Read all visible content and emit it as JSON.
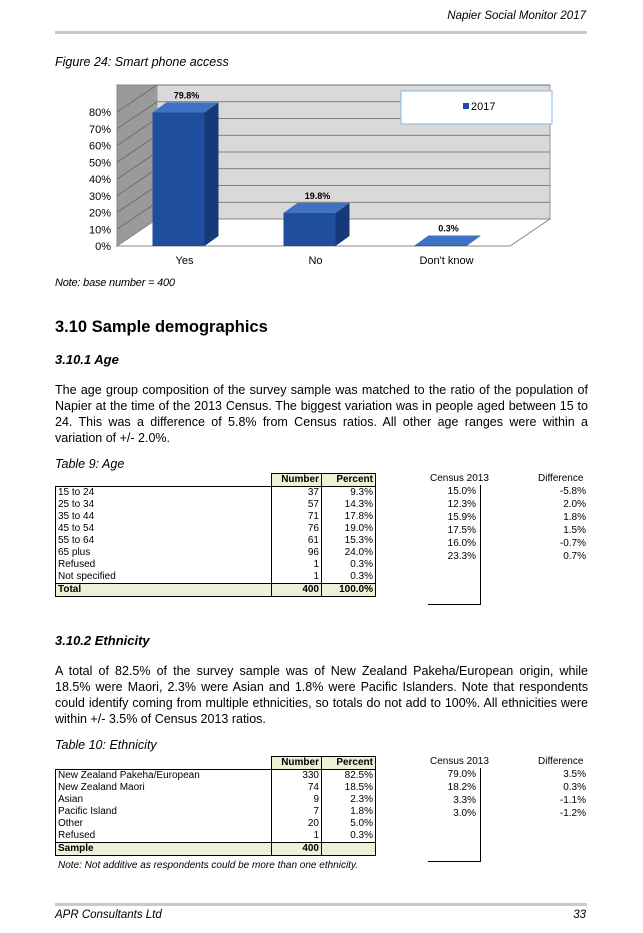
{
  "header": {
    "title": "Napier Social Monitor 2017"
  },
  "figure": {
    "caption": "Figure 24:  Smart phone access",
    "note": "Note: base number = 400"
  },
  "chart_data": {
    "type": "bar",
    "categories": [
      "Yes",
      "No",
      "Don't know"
    ],
    "series": [
      {
        "name": "2017",
        "values": [
          79.8,
          19.8,
          0.3
        ]
      }
    ],
    "data_labels": [
      "79.8%",
      "19.8%",
      "0.3%"
    ],
    "y_ticks": [
      "0%",
      "10%",
      "20%",
      "30%",
      "40%",
      "50%",
      "60%",
      "70%",
      "80%"
    ],
    "ylim": [
      0,
      80
    ],
    "grid": true,
    "legend": "top-right",
    "color": "#1f4e9e"
  },
  "section": {
    "title": "3.10  Sample demographics",
    "age_heading": "3.10.1   Age",
    "age_text": "The age group composition of the survey sample was matched to the ratio of the population of Napier at the time of the 2013 Census.  The biggest variation was in people aged between 15 to 24.  This was a difference of 5.8% from Census ratios.  All other age ranges were within a variation of +/- 2.0%.",
    "eth_heading": "3.10.2   Ethnicity",
    "eth_text": "A total of 82.5% of the survey sample was of New Zealand Pakeha/European origin, while 18.5% were Maori, 2.3% were Asian and 1.8% were Pacific Islanders.  Note that respondents could identify coming from multiple ethnicities, so totals do not add to 100%. All ethnicities were within +/- 3.5% of Census 2013 ratios."
  },
  "age_table": {
    "caption": "Table 9:  Age",
    "headers": [
      "Number",
      "Percent"
    ],
    "census_header": "Census 2013",
    "diff_header": "Difference",
    "rows": [
      {
        "label": "15 to 24",
        "number": "37",
        "percent": "9.3%",
        "census": "15.0%",
        "diff": "-5.8%"
      },
      {
        "label": "25 to 34",
        "number": "57",
        "percent": "14.3%",
        "census": "12.3%",
        "diff": "2.0%"
      },
      {
        "label": "35 to 44",
        "number": "71",
        "percent": "17.8%",
        "census": "15.9%",
        "diff": "1.8%"
      },
      {
        "label": "45 to 54",
        "number": "76",
        "percent": "19.0%",
        "census": "17.5%",
        "diff": "1.5%"
      },
      {
        "label": "55 to 64",
        "number": "61",
        "percent": "15.3%",
        "census": "16.0%",
        "diff": "-0.7%"
      },
      {
        "label": "65 plus",
        "number": "96",
        "percent": "24.0%",
        "census": "23.3%",
        "diff": "0.7%"
      },
      {
        "label": "Refused",
        "number": "1",
        "percent": "0.3%",
        "census": "",
        "diff": ""
      },
      {
        "label": "Not specified",
        "number": "1",
        "percent": "0.3%",
        "census": "",
        "diff": ""
      }
    ],
    "total": {
      "label": "Total",
      "number": "400",
      "percent": "100.0%"
    }
  },
  "eth_table": {
    "caption": "Table 10:  Ethnicity",
    "headers": [
      "Number",
      "Percent"
    ],
    "census_header": "Census 2013",
    "diff_header": "Difference",
    "rows": [
      {
        "label": "New Zealand Pakeha/European",
        "number": "330",
        "percent": "82.5%",
        "census": "79.0%",
        "diff": "3.5%"
      },
      {
        "label": "New Zealand Maori",
        "number": "74",
        "percent": "18.5%",
        "census": "18.2%",
        "diff": "0.3%"
      },
      {
        "label": "Asian",
        "number": "9",
        "percent": "2.3%",
        "census": "3.3%",
        "diff": "-1.1%"
      },
      {
        "label": "Pacific Island",
        "number": "7",
        "percent": "1.8%",
        "census": "3.0%",
        "diff": "-1.2%"
      },
      {
        "label": "Other",
        "number": "20",
        "percent": "5.0%",
        "census": "",
        "diff": ""
      },
      {
        "label": "Refused",
        "number": "1",
        "percent": "0.3%",
        "census": "",
        "diff": ""
      }
    ],
    "total": {
      "label": "Sample",
      "number": "400",
      "percent": ""
    },
    "note": "Note: Not additive as respondents could be more than one ethnicity."
  },
  "footer": {
    "left": "APR Consultants Ltd",
    "page": "33"
  }
}
